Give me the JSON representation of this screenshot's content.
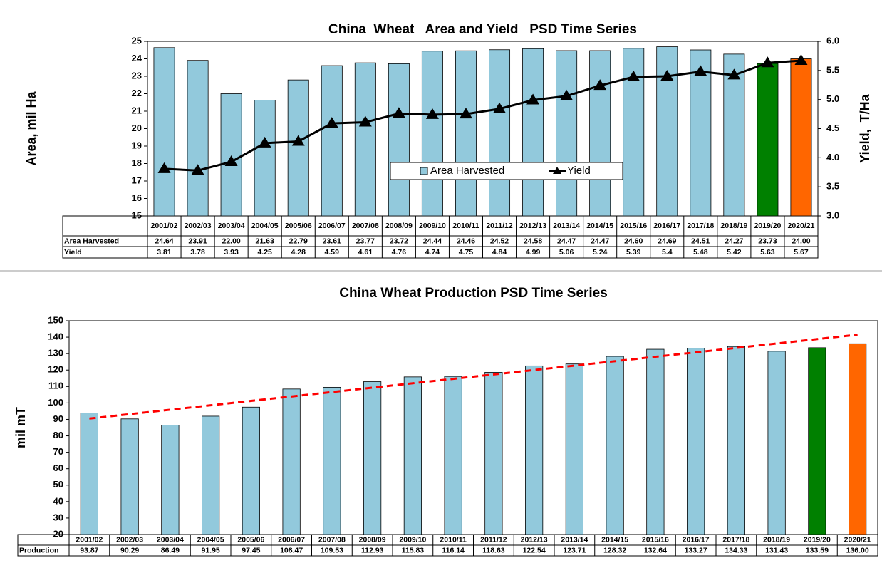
{
  "chart_data": [
    {
      "type": "bar_line",
      "title": "China  Wheat   Area and Yield   PSD Time Series",
      "ylabel": "Area, mil Ha",
      "y2label": "Yield,  T/Ha",
      "categories": [
        "2001/02",
        "2002/03",
        "2003/04",
        "2004/05",
        "2005/06",
        "2006/07",
        "2007/08",
        "2008/09",
        "2009/10",
        "2010/11",
        "2011/12",
        "2012/13",
        "2013/14",
        "2014/15",
        "2015/16",
        "2016/17",
        "2017/18",
        "2018/19",
        "2019/20",
        "2020/21"
      ],
      "series": [
        {
          "name": "Area Harvested",
          "color": "#92c9dc",
          "colors": [
            "#92c9dc",
            "#92c9dc",
            "#92c9dc",
            "#92c9dc",
            "#92c9dc",
            "#92c9dc",
            "#92c9dc",
            "#92c9dc",
            "#92c9dc",
            "#92c9dc",
            "#92c9dc",
            "#92c9dc",
            "#92c9dc",
            "#92c9dc",
            "#92c9dc",
            "#92c9dc",
            "#92c9dc",
            "#92c9dc",
            "#008000",
            "#ff6600"
          ],
          "values": [
            24.64,
            23.91,
            22.0,
            21.63,
            22.79,
            23.61,
            23.77,
            23.72,
            24.44,
            24.46,
            24.52,
            24.58,
            24.47,
            24.47,
            24.6,
            24.69,
            24.51,
            24.27,
            23.73,
            24.0
          ],
          "value_labels": [
            "24.64",
            "23.91",
            "22.00",
            "21.63",
            "22.79",
            "23.61",
            "23.77",
            "23.72",
            "24.44",
            "24.46",
            "24.52",
            "24.58",
            "24.47",
            "24.47",
            "24.60",
            "24.69",
            "24.51",
            "24.27",
            "23.73",
            "24.00"
          ]
        },
        {
          "name": "Yield",
          "color": "#000000",
          "axis": "y2",
          "values": [
            3.81,
            3.78,
            3.93,
            4.25,
            4.28,
            4.59,
            4.61,
            4.76,
            4.74,
            4.75,
            4.84,
            4.99,
            5.06,
            5.24,
            5.39,
            5.4,
            5.48,
            5.42,
            5.63,
            5.67
          ],
          "value_labels": [
            "3.81",
            "3.78",
            "3.93",
            "4.25",
            "4.28",
            "4.59",
            "4.61",
            "4.76",
            "4.74",
            "4.75",
            "4.84",
            "4.99",
            "5.06",
            "5.24",
            "5.39",
            "5.4",
            "5.48",
            "5.42",
            "5.63",
            "5.67"
          ]
        }
      ],
      "ylim": [
        15,
        25
      ],
      "yticks": [
        15,
        16,
        17,
        18,
        19,
        20,
        21,
        22,
        23,
        24,
        25
      ],
      "y2lim": [
        3,
        6
      ],
      "y2ticks": [
        {
          "value": 3,
          "label": "3.0"
        },
        {
          "value": 3.5,
          "label": "3.5"
        },
        {
          "value": 4,
          "label": "4.0"
        },
        {
          "value": 4.5,
          "label": "4.5"
        },
        {
          "value": 5,
          "label": "5.0"
        },
        {
          "value": 5.5,
          "label": "5.5"
        },
        {
          "value": 6,
          "label": "6.0"
        }
      ],
      "legend": "center"
    },
    {
      "type": "bar",
      "title": "China Wheat Production PSD Time Series",
      "ylabel": "mil mT",
      "categories": [
        "2001/02",
        "2002/03",
        "2003/04",
        "2004/05",
        "2005/06",
        "2006/07",
        "2007/08",
        "2008/09",
        "2009/10",
        "2010/11",
        "2011/12",
        "2012/13",
        "2013/14",
        "2014/15",
        "2015/16",
        "2016/17",
        "2017/18",
        "2018/19",
        "2019/20",
        "2020/21"
      ],
      "series": [
        {
          "name": "Production",
          "color": "#92c9dc",
          "colors": [
            "#92c9dc",
            "#92c9dc",
            "#92c9dc",
            "#92c9dc",
            "#92c9dc",
            "#92c9dc",
            "#92c9dc",
            "#92c9dc",
            "#92c9dc",
            "#92c9dc",
            "#92c9dc",
            "#92c9dc",
            "#92c9dc",
            "#92c9dc",
            "#92c9dc",
            "#92c9dc",
            "#92c9dc",
            "#92c9dc",
            "#008000",
            "#ff6600"
          ],
          "values": [
            93.87,
            90.29,
            86.49,
            91.95,
            97.45,
            108.47,
            109.53,
            112.93,
            115.83,
            116.14,
            118.63,
            122.54,
            123.71,
            128.32,
            132.64,
            133.27,
            134.33,
            131.43,
            133.59,
            136.0
          ],
          "value_labels": [
            "93.87",
            "90.29",
            "86.49",
            "91.95",
            "97.45",
            "108.47",
            "109.53",
            "112.93",
            "115.83",
            "116.14",
            "118.63",
            "122.54",
            "123.71",
            "128.32",
            "132.64",
            "133.27",
            "134.33",
            "131.43",
            "133.59",
            "136.00"
          ]
        }
      ],
      "trendline": {
        "color": "#ff0000",
        "start": 90.5,
        "end": 141.5
      },
      "ylim": [
        20,
        150
      ],
      "yticks": [
        20,
        30,
        40,
        50,
        60,
        70,
        80,
        90,
        100,
        110,
        120,
        130,
        140,
        150
      ]
    }
  ]
}
